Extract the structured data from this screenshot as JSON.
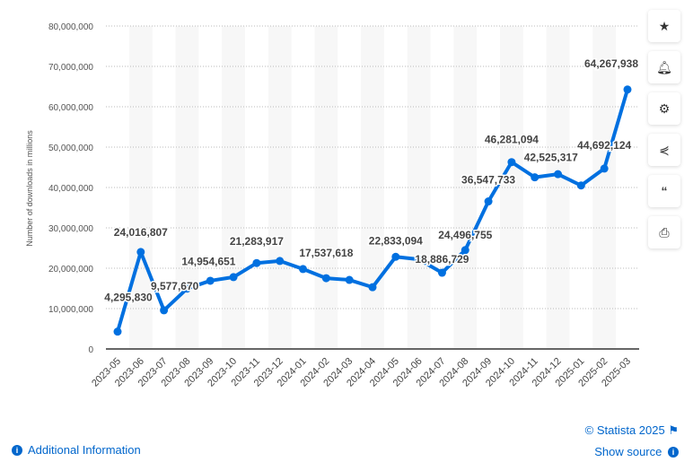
{
  "chart_data": {
    "type": "line",
    "title": "",
    "xlabel": "",
    "ylabel": "Number of downloads in millions",
    "ylim": [
      0,
      80000000
    ],
    "yticks": [
      "0",
      "10,000,000",
      "20,000,000",
      "30,000,000",
      "40,000,000",
      "50,000,000",
      "60,000,000",
      "70,000,000",
      "80,000,000"
    ],
    "categories": [
      "2023-05",
      "2023-06",
      "2023-07",
      "2023-08",
      "2023-09",
      "2023-10",
      "2023-11",
      "2023-12",
      "2024-01",
      "2024-02",
      "2024-03",
      "2024-04",
      "2024-05",
      "2024-06",
      "2024-07",
      "2024-08",
      "2024-09",
      "2024-10",
      "2024-11",
      "2024-12",
      "2025-01",
      "2025-02",
      "2025-03"
    ],
    "values": [
      4295830,
      24016807,
      9577670,
      14954651,
      16900000,
      17800000,
      21283917,
      21800000,
      19800000,
      17537618,
      17100000,
      15300000,
      22833094,
      22200000,
      18886729,
      24496755,
      36547733,
      46281094,
      42525317,
      43300000,
      40500000,
      44692124,
      64267938
    ],
    "data_labels": [
      "4,295,830",
      "24,016,807",
      "9,577,670",
      "14,954,651",
      "",
      "",
      "21,283,917",
      "",
      "",
      "17,537,618",
      "",
      "",
      "22,833,094",
      "",
      "18,886,729",
      "24,496,755",
      "36,547,733",
      "46,281,094",
      "42,525,317",
      "",
      "",
      "44,692,124",
      "64,267,938"
    ],
    "grid": true,
    "line_color": "#0070e0"
  },
  "sidebar": {
    "icons": [
      "star-icon",
      "bell-icon",
      "gear-icon",
      "share-icon",
      "quote-icon",
      "print-icon"
    ]
  },
  "footer": {
    "copyright": "© Statista 2025",
    "additional_info": "Additional Information",
    "show_source": "Show source"
  }
}
